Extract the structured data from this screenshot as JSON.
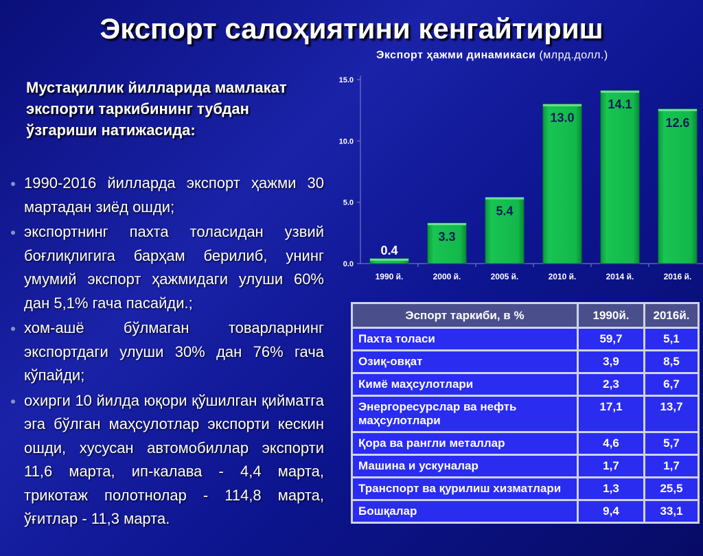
{
  "title": "Экспорт салоҳиятини кенгайтириш",
  "intro": "Мустақиллик йилларида мамлакат экспорти таркибининг тубдан ўзгариши натижасида:",
  "bullets": [
    "1990-2016 йилларда экспорт ҳажми 30 мартадан зиёд ошди;",
    "экспортнинг пахта толасидан узвий боғлиқлигига барҳам берилиб, унинг умумий экспорт ҳажмидаги улуши 60% дан 5,1% гача пасайди.;",
    "хом-ашё бўлмаган товарларнинг экспортдаги улуши 30% дан 76% гача кўпайди;",
    "охирги 10 йилда юқори қўшилган қийматга эга бўлган маҳсулотлар экспорти кескин ошди, хусусан автомобиллар экспорти 11,6 марта, ип-калава - 4,4 марта, трикотаж полотнолар - 114,8 марта, ўғитлар - 11,3 марта."
  ],
  "chart_data": {
    "type": "bar",
    "title": "Экспорт ҳажми динамикаси",
    "unit": "(млрд.долл.)",
    "categories": [
      "1990 й.",
      "2000 й.",
      "2005 й.",
      "2010 й.",
      "2014 й.",
      "2016 й."
    ],
    "values": [
      0.4,
      3.3,
      5.4,
      13.0,
      14.1,
      12.6
    ],
    "data_labels": [
      "0.4",
      "3.3",
      "5.4",
      "13.0",
      "14.1",
      "12.6"
    ],
    "yticks": [
      "0.0",
      "5.0",
      "10.0",
      "15.0"
    ],
    "ylim": [
      0,
      15
    ],
    "grid": false,
    "bar_color": "#12b84a"
  },
  "table": {
    "headers": [
      "Эспорт таркиби, в %",
      "1990й.",
      "2016й."
    ],
    "rows": [
      [
        "Пахта толаси",
        "59,7",
        "5,1"
      ],
      [
        "Озиқ-овқат",
        "3,9",
        "8,5"
      ],
      [
        "Кимё маҳсулотлари",
        "2,3",
        "6,7"
      ],
      [
        "Энергоресурслар ва нефть маҳсулотлари",
        "17,1",
        "13,7"
      ],
      [
        "Қора ва рангли металлар",
        "4,6",
        "5,7"
      ],
      [
        "Машина и ускуналар",
        "1,7",
        "1,7"
      ],
      [
        "Транспорт ва қурилиш хизматлари",
        "1,3",
        "25,5"
      ],
      [
        "Бошқалар",
        "9,4",
        "33,1"
      ]
    ]
  }
}
